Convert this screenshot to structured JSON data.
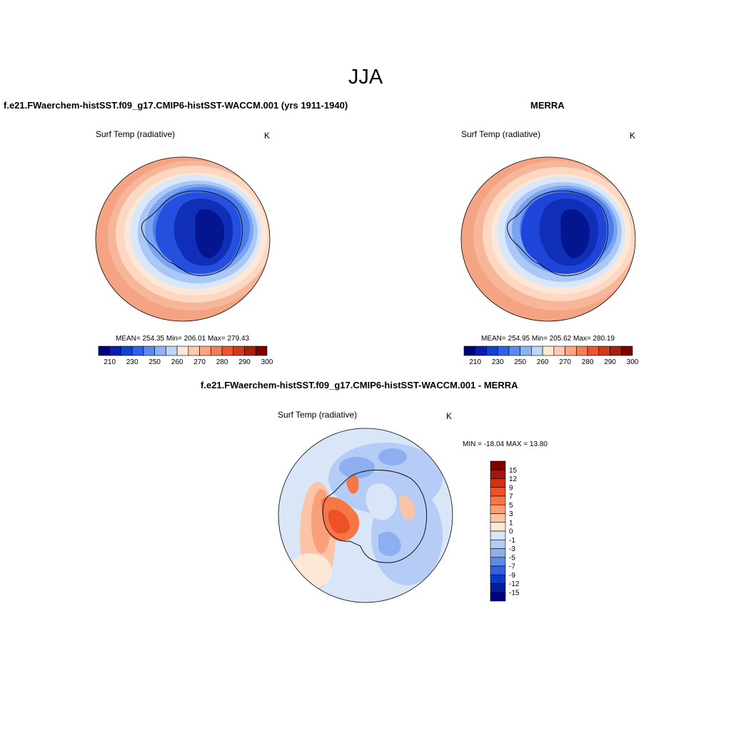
{
  "figure": {
    "season": "JJA",
    "panels": [
      {
        "title": "f.e21.FWaerchem-histSST.f09_g17.CMIP6-histSST-WACCM.001 (yrs 1911-1940)",
        "variable": "Surf Temp (radiative)",
        "units": "K",
        "stats": "MEAN= 254.35  Min= 206.01  Max= 279.43",
        "mean": 254.35,
        "min": 206.01,
        "max": 279.43
      },
      {
        "title": "MERRA",
        "variable": "Surf Temp (radiative)",
        "units": "K",
        "stats": "MEAN= 254.95  Min= 205.62  Max= 280.19",
        "mean": 254.95,
        "min": 205.62,
        "max": 280.19
      },
      {
        "title": "f.e21.FWaerchem-histSST.f09_g17.CMIP6-histSST-WACCM.001 - MERRA",
        "variable": "Surf Temp (radiative)",
        "units": "K",
        "stats": "MIN = -18.04 MAX =  13.80",
        "min": -18.04,
        "max": 13.8
      }
    ],
    "abs_colorbar": {
      "tick_labels": [
        "210",
        "230",
        "250",
        "260",
        "270",
        "280",
        "290",
        "300"
      ],
      "colors": [
        "#00007f",
        "#0a1fa8",
        "#1640d0",
        "#2f62ec",
        "#5a8bf4",
        "#8cb2f6",
        "#bdd6f8",
        "#fde8d8",
        "#fcc9b0",
        "#f9a482",
        "#f47e55",
        "#ec5430",
        "#d43818",
        "#a8200c",
        "#800000"
      ]
    },
    "diff_colorbar": {
      "tick_labels": [
        "15",
        "12",
        "9",
        "7",
        "5",
        "3",
        "1",
        "0",
        "-1",
        "-3",
        "-5",
        "-7",
        "-9",
        "-12",
        "-15"
      ],
      "colors": [
        "#7f0000",
        "#aa1408",
        "#d53012",
        "#ec5225",
        "#f57745",
        "#f9a07a",
        "#fbc4a6",
        "#fde8d8",
        "#d8e6f8",
        "#b5ccf6",
        "#8cafef",
        "#5d8ae8",
        "#2f60e0",
        "#0f38c4",
        "#061d96",
        "#00007f"
      ]
    }
  }
}
